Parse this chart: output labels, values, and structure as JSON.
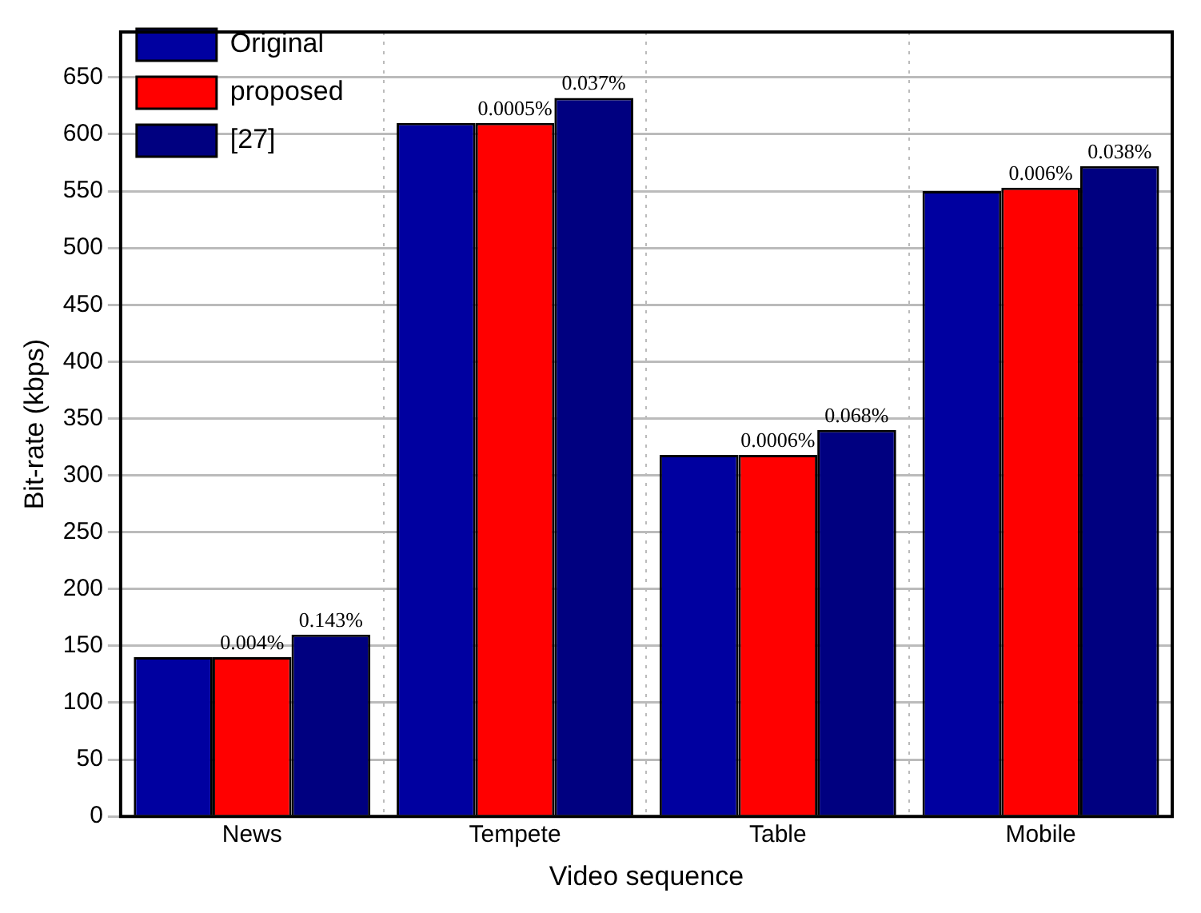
{
  "chart_data": {
    "type": "bar",
    "xlabel": "Video sequence",
    "ylabel": "Bit-rate (kbps)",
    "categories": [
      "News",
      "Tempete",
      "Table",
      "Mobile"
    ],
    "series": [
      {
        "name": "Original",
        "color": "#0000a0",
        "values": [
          140,
          610,
          318,
          550
        ]
      },
      {
        "name": "proposed",
        "color": "#ff0000",
        "values": [
          140,
          610,
          318,
          553
        ]
      },
      {
        "name": "[27]",
        "color": "#000080",
        "values": [
          160,
          632,
          340,
          572
        ]
      }
    ],
    "annotations": [
      {
        "text": "0.004%",
        "x": "News",
        "y": 140
      },
      "0.143%",
      {
        "text": "0.0005%",
        "x": "Tempete",
        "y": 610
      },
      "0.037%",
      {
        "text": "0.0006%",
        "x": "Table",
        "y": 318
      },
      "0.068%",
      {
        "text": "0.006%",
        "x": "Mobile",
        "y": 553
      },
      "0.038%"
    ],
    "ylim": [
      0,
      690
    ],
    "yticks": [
      0,
      50,
      100,
      150,
      200,
      250,
      300,
      350,
      400,
      450,
      500,
      550,
      600,
      650
    ],
    "grid": true,
    "legend": "top left"
  }
}
